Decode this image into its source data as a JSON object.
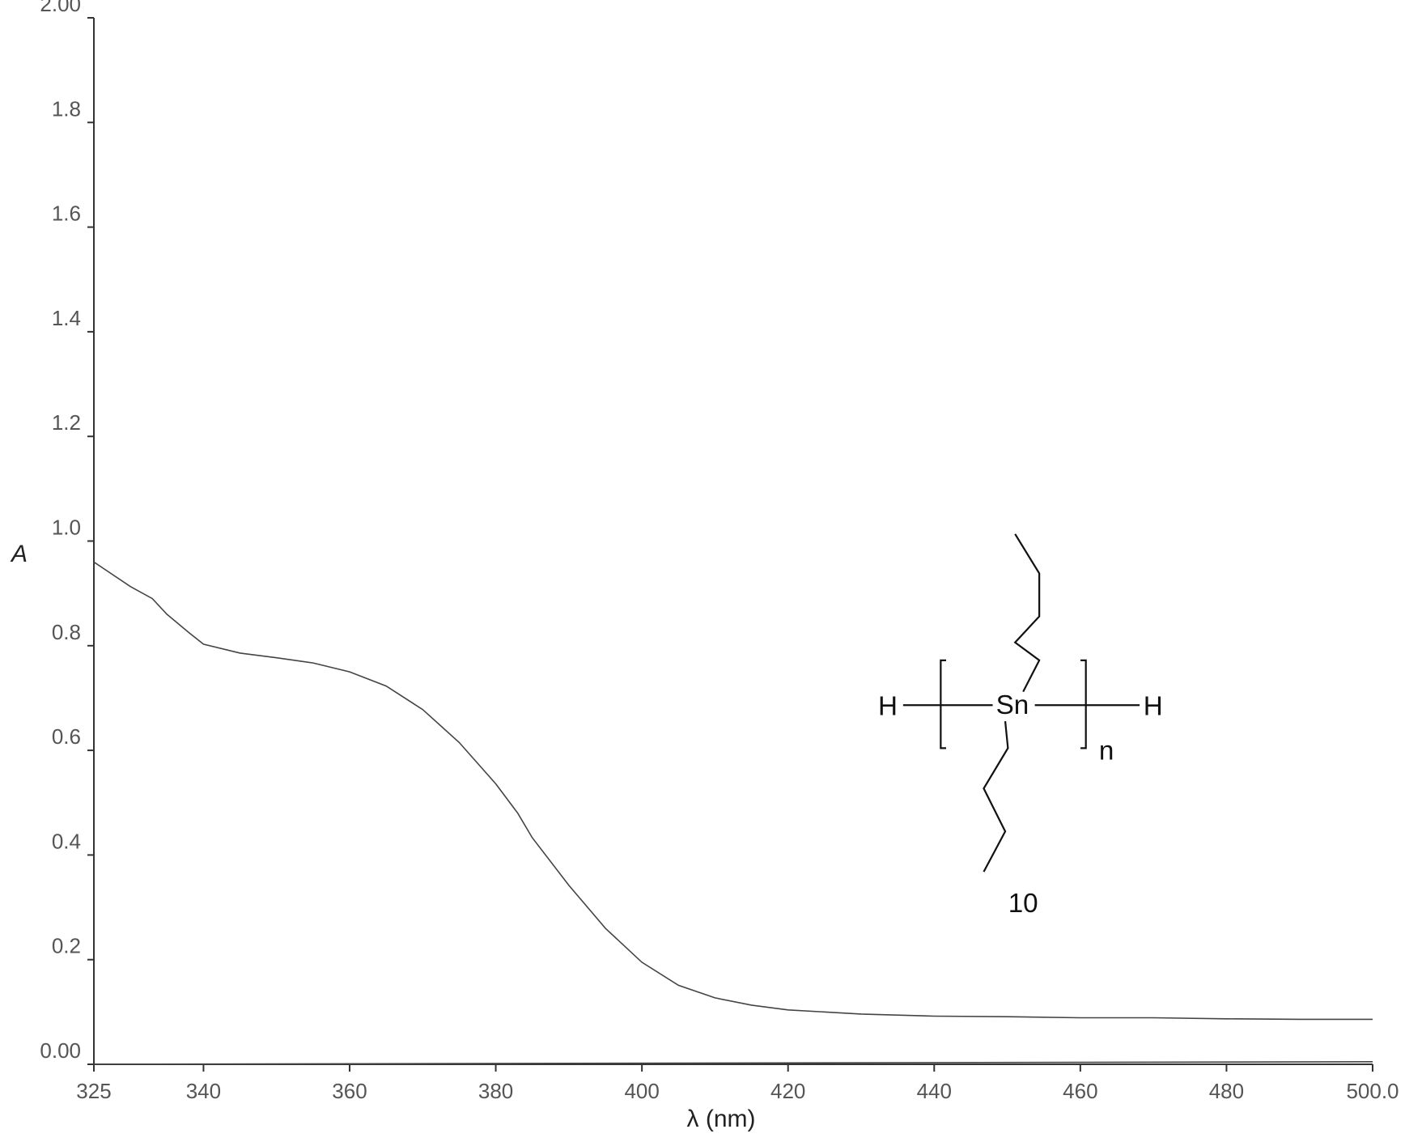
{
  "chart_data": {
    "type": "line",
    "y_label": "A",
    "x_label": "λ (nm)",
    "xlim": [
      325,
      500
    ],
    "ylim": [
      0,
      2
    ],
    "xticks": [
      325,
      340,
      360,
      380,
      400,
      420,
      440,
      460,
      480,
      {
        "value": 500,
        "label": "500.0"
      }
    ],
    "yticks": [
      {
        "value": 0,
        "label": "0.00"
      },
      0.2,
      0.4,
      0.6,
      0.8,
      {
        "value": 1,
        "label": "1.0"
      },
      1.2,
      1.4,
      1.6,
      1.8,
      {
        "value": 2,
        "label": "2.00"
      }
    ],
    "series": [
      {
        "color": "#444444",
        "x": [
          325,
          330,
          333,
          335,
          338,
          340,
          345,
          350,
          355,
          360,
          365,
          370,
          375,
          380,
          383,
          385,
          390,
          395,
          400,
          405,
          410,
          415,
          420,
          430,
          440,
          450,
          460,
          470,
          480,
          490,
          500
        ],
        "values": [
          0.96,
          0.913,
          0.89,
          0.86,
          0.825,
          0.803,
          0.786,
          0.777,
          0.767,
          0.75,
          0.723,
          0.678,
          0.615,
          0.536,
          0.48,
          0.433,
          0.342,
          0.26,
          0.195,
          0.151,
          0.127,
          0.113,
          0.104,
          0.096,
          0.092,
          0.091,
          0.089,
          0.089,
          0.087,
          0.086,
          0.086
        ]
      },
      {
        "color": "#444444",
        "x": [
          325,
          500
        ],
        "values": [
          0,
          0.005
        ]
      }
    ],
    "annotations": [
      "H",
      "Sn",
      "H",
      "n",
      "10"
    ]
  }
}
